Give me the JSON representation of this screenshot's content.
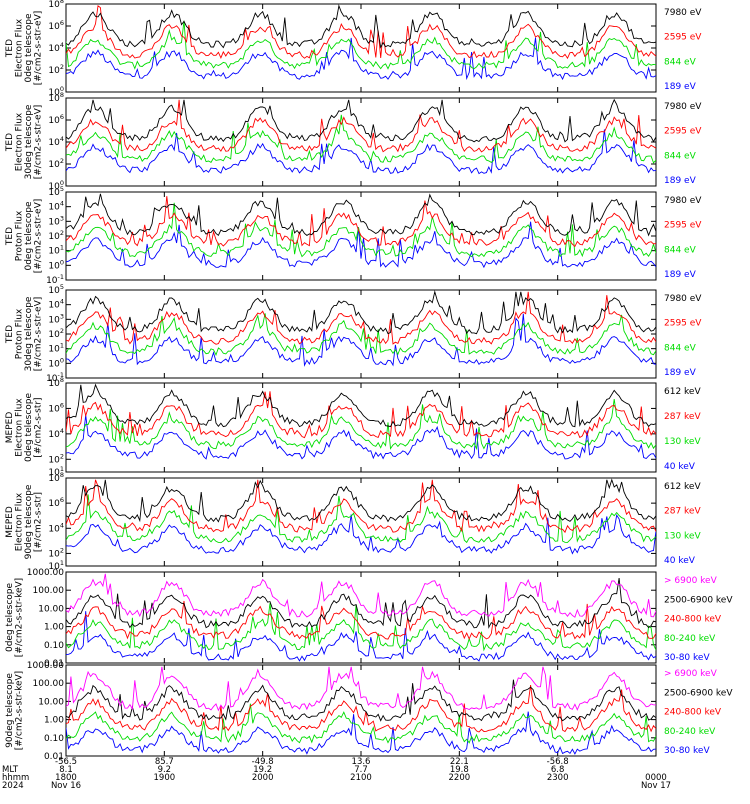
{
  "chart_data": [
    {
      "type": "line",
      "ylabel": [
        "TED",
        "Electron Flux",
        "0deg telescope",
        "[#/cm2-s-str-eV]"
      ],
      "ylim": [
        1,
        100000000
      ],
      "yscale": "log",
      "yticks": [
        "10^0",
        "10^2",
        "10^4",
        "10^6",
        "10^8"
      ],
      "series": [
        {
          "name": "7980 eV",
          "color": "#000000",
          "peak": [
            2,
            3,
            4,
            5,
            6,
            7,
            7.5,
            8.1
          ]
        },
        {
          "name": "2595 eV",
          "color": "#ff0000"
        },
        {
          "name": "844 eV",
          "color": "#00dd00"
        },
        {
          "name": "189 eV",
          "color": "#0000ff"
        }
      ]
    },
    {
      "type": "line",
      "ylabel": [
        "TED",
        "Electron Flux",
        "30deg telescope",
        "[#/cm2-s-str-eV]"
      ],
      "ylim": [
        1,
        100000000
      ],
      "yscale": "log",
      "yticks": [
        "10^0",
        "10^2",
        "10^4",
        "10^6",
        "10^8"
      ],
      "series": [
        {
          "name": "7980 eV",
          "color": "#000000"
        },
        {
          "name": "2595 eV",
          "color": "#ff0000"
        },
        {
          "name": "844 eV",
          "color": "#00dd00"
        },
        {
          "name": "189 eV",
          "color": "#0000ff"
        }
      ]
    },
    {
      "type": "line",
      "ylabel": [
        "TED",
        "Proton Flux",
        "0deg telescope",
        "[#/cm2-s-str-eV]"
      ],
      "ylim": [
        0.1,
        100000
      ],
      "yscale": "log",
      "yticks": [
        "10^-1",
        "10^0",
        "10^1",
        "10^2",
        "10^3",
        "10^4",
        "10^5"
      ],
      "series": [
        {
          "name": "7980 eV",
          "color": "#000000"
        },
        {
          "name": "2595 eV",
          "color": "#ff0000"
        },
        {
          "name": "844 eV",
          "color": "#00dd00"
        },
        {
          "name": "189 eV",
          "color": "#0000ff"
        }
      ]
    },
    {
      "type": "line",
      "ylabel": [
        "TED",
        "Proton Flux",
        "30deg telescope",
        "[#/cm2-s-str-eV]"
      ],
      "ylim": [
        0.1,
        100000
      ],
      "yscale": "log",
      "yticks": [
        "10^-1",
        "10^0",
        "10^1",
        "10^2",
        "10^3",
        "10^4",
        "10^5"
      ],
      "series": [
        {
          "name": "7980 eV",
          "color": "#000000"
        },
        {
          "name": "2595 eV",
          "color": "#ff0000"
        },
        {
          "name": "844 eV",
          "color": "#00dd00"
        },
        {
          "name": "189 eV",
          "color": "#0000ff"
        }
      ]
    },
    {
      "type": "line",
      "ylabel": [
        "MEPED",
        "Electron Flux",
        "0deg telescope",
        "[#/cm2-s-str]"
      ],
      "ylim": [
        10,
        100000000
      ],
      "yscale": "log",
      "yticks": [
        "10^1",
        "10^2",
        "10^4",
        "10^6",
        "10^8"
      ],
      "series": [
        {
          "name": "612 keV",
          "color": "#000000"
        },
        {
          "name": "287 keV",
          "color": "#ff0000"
        },
        {
          "name": "130 keV",
          "color": "#00dd00"
        },
        {
          "name": "40 keV",
          "color": "#0000ff"
        }
      ]
    },
    {
      "type": "line",
      "ylabel": [
        "MEPED",
        "Electron Flux",
        "90deg telescope",
        "[#/cm2-s-str]"
      ],
      "ylim": [
        10,
        100000000
      ],
      "yscale": "log",
      "yticks": [
        "10^1",
        "10^2",
        "10^4",
        "10^6",
        "10^8"
      ],
      "series": [
        {
          "name": "612 keV",
          "color": "#000000"
        },
        {
          "name": "287 keV",
          "color": "#ff0000"
        },
        {
          "name": "130 keV",
          "color": "#00dd00"
        },
        {
          "name": "40 keV",
          "color": "#0000ff"
        }
      ]
    },
    {
      "type": "line",
      "ylabel": [
        "0deg telescope",
        "[#/cm2-s-str-keV]"
      ],
      "ylim": [
        0.01,
        1000
      ],
      "yscale": "log",
      "yticks": [
        "0.01",
        "0.10",
        "1.00",
        "10.00",
        "100.00",
        "1000.00"
      ],
      "series": [
        {
          "name": "> 6900 keV",
          "color": "#ff00ff"
        },
        {
          "name": "2500-6900 keV",
          "color": "#000000"
        },
        {
          "name": "240-800 keV",
          "color": "#ff0000"
        },
        {
          "name": "80-240 keV",
          "color": "#00dd00"
        },
        {
          "name": "30-80 keV",
          "color": "#0000ff"
        }
      ]
    },
    {
      "type": "line",
      "ylabel": [
        "90deg telescope",
        "[#/cm2-s-str-keV]"
      ],
      "ylim": [
        0.01,
        1000
      ],
      "yscale": "log",
      "yticks": [
        "0.01",
        "0.10",
        "1.00",
        "10.00",
        "100.00",
        "1000.00"
      ],
      "series": [
        {
          "name": "> 6900 keV",
          "color": "#ff00ff"
        },
        {
          "name": "2500-6900 keV",
          "color": "#000000"
        },
        {
          "name": "240-800 keV",
          "color": "#ff0000"
        },
        {
          "name": "80-240 keV",
          "color": "#00dd00"
        },
        {
          "name": "30-80 keV",
          "color": "#0000ff"
        }
      ]
    }
  ],
  "time_axis": {
    "row_labels": [
      "MLT",
      "hhmm",
      "2024"
    ],
    "ticks": [
      {
        "lat": "-56.5",
        "mlt": "8.1",
        "hhmm": "1800",
        "date": "Nov 16"
      },
      {
        "lat": "85.7",
        "mlt": "9.2",
        "hhmm": "1900",
        "date": ""
      },
      {
        "lat": "-49.8",
        "mlt": "19.2",
        "hhmm": "2000",
        "date": ""
      },
      {
        "lat": "13.6",
        "mlt": "7.7",
        "hhmm": "2100",
        "date": ""
      },
      {
        "lat": "22.1",
        "mlt": "19.8",
        "hhmm": "2200",
        "date": ""
      },
      {
        "lat": "-56.8",
        "mlt": "6.8",
        "hhmm": "2300",
        "date": ""
      },
      {
        "lat": "",
        "mlt": "",
        "hhmm": "0000",
        "date": "Nov 17"
      }
    ]
  }
}
